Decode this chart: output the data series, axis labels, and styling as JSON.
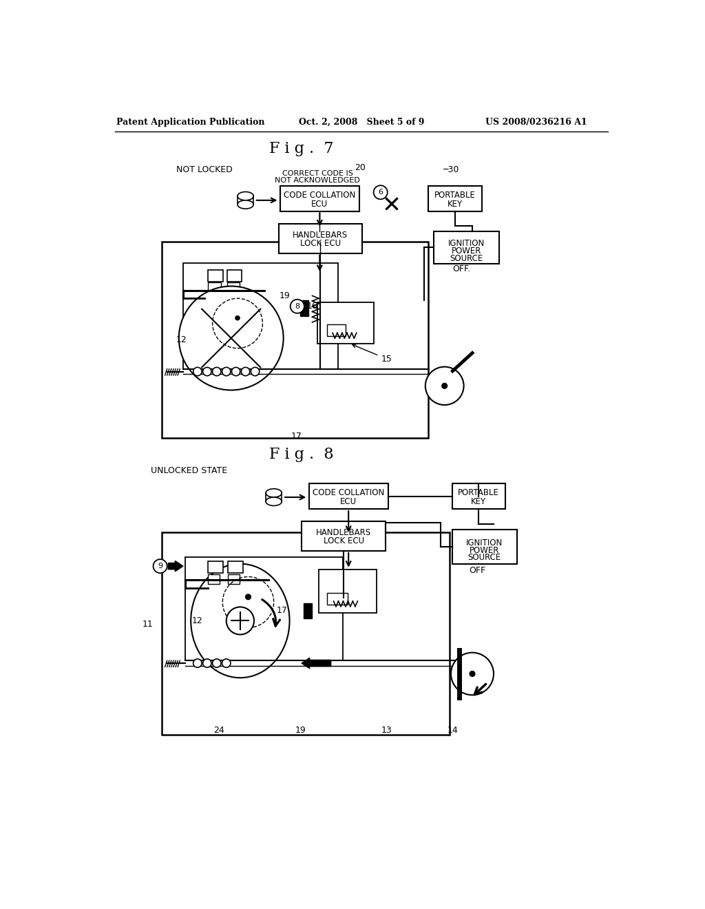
{
  "header_left": "Patent Application Publication",
  "header_center": "Oct. 2, 2008   Sheet 5 of 9",
  "header_right": "US 2008/0236216 A1",
  "fig7_title": "F i g .  7",
  "fig8_title": "F i g .  8",
  "fig7_label": "NOT LOCKED",
  "fig8_label": "UNLOCKED STATE",
  "background": "#ffffff",
  "line_color": "#000000"
}
